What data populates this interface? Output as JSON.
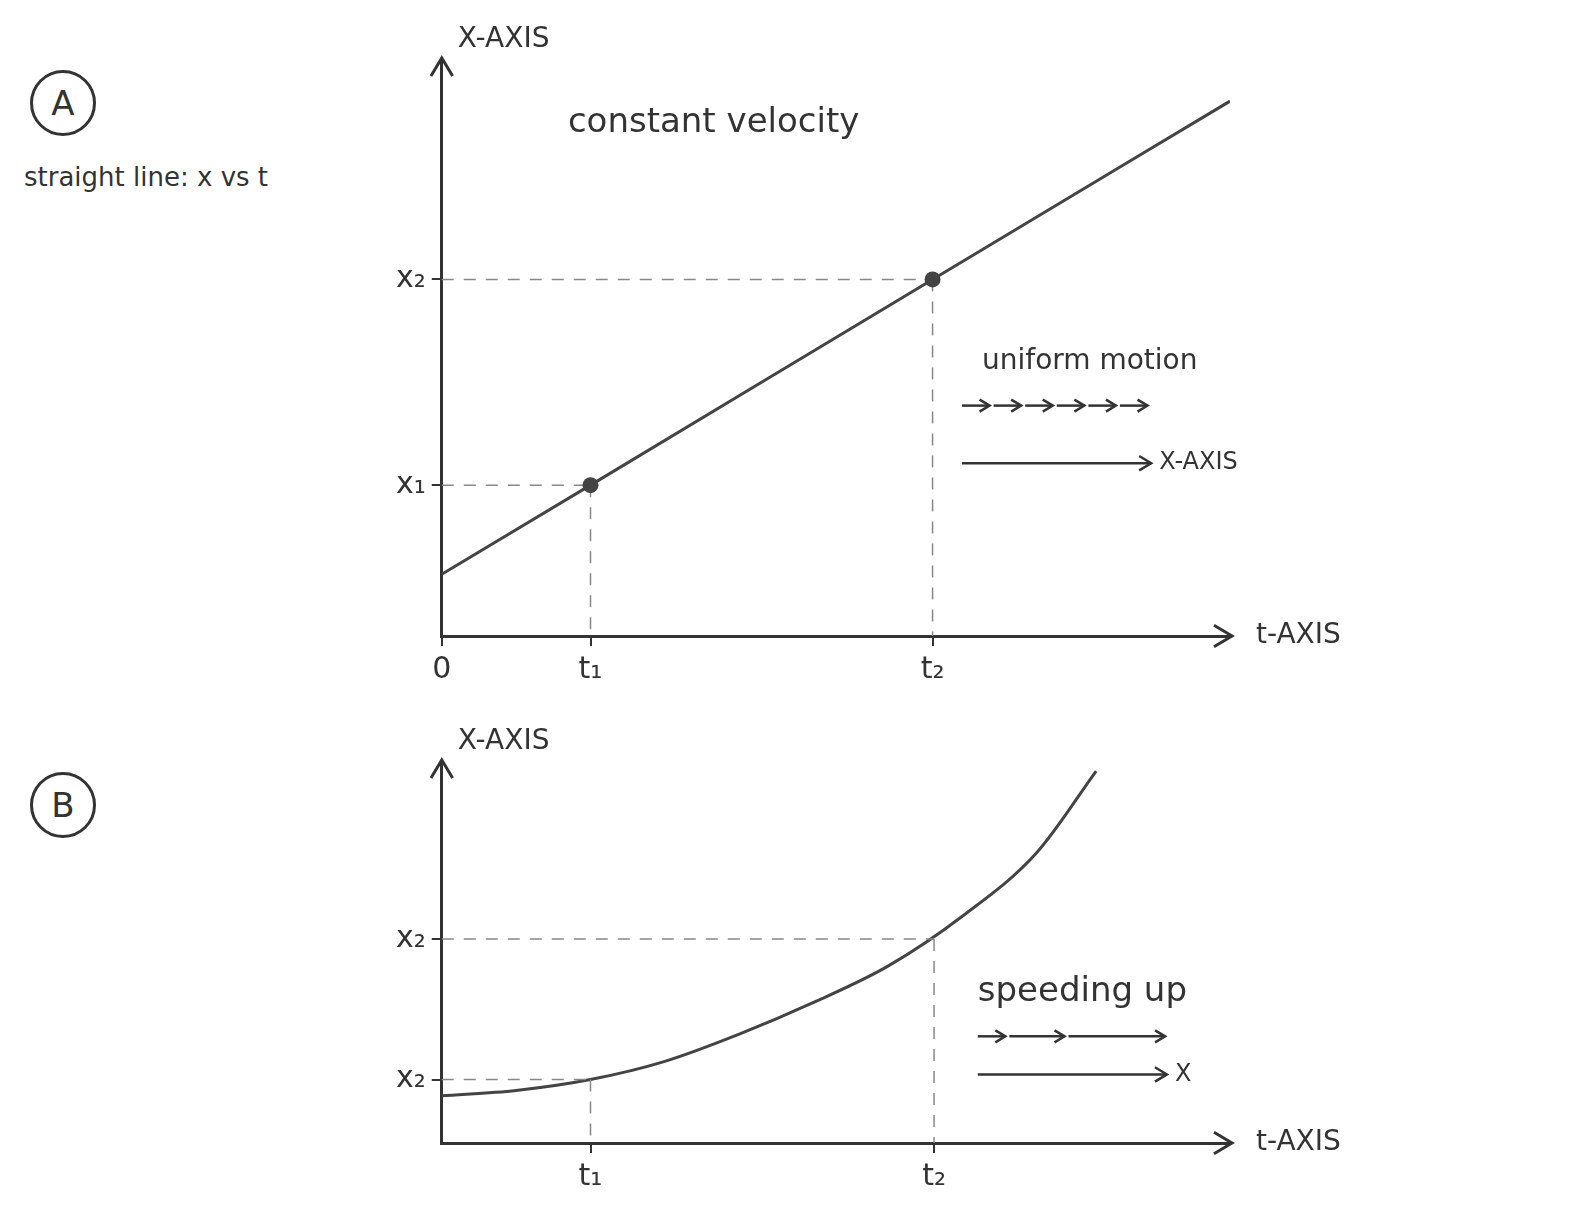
{
  "chart_data": [
    {
      "type": "line",
      "panel_label": "A",
      "side_note": "straight line: x vs t",
      "title": "constant velocity",
      "xlabel": "t-AXIS",
      "ylabel": "X-AXIS",
      "x": [
        0,
        1,
        3.3,
        5.3
      ],
      "values": [
        0.45,
        1.1,
        2.6,
        3.9
      ],
      "color": "#444444",
      "line_style": "solid",
      "marker": "circle",
      "guide_points": {
        "x": [
          1,
          3.3
        ],
        "values": [
          1.1,
          2.6
        ]
      },
      "xlim": [
        0,
        5.3
      ],
      "ylim": [
        0,
        4.2
      ],
      "xticks": [
        0,
        {
          "value": 1,
          "label": "t₁"
        },
        {
          "value": 3.3,
          "label": "t₂"
        }
      ],
      "yticks": [
        {
          "value": 1.1,
          "label": "x₁"
        },
        {
          "value": 2.6,
          "label": "x₂"
        }
      ],
      "grid": false,
      "motion_diagram": {
        "label": "uniform motion",
        "axis_label": "X-AXIS"
      }
    },
    {
      "type": "line",
      "panel_label": "B",
      "title": "speeding up",
      "xlabel": "t-AXIS",
      "ylabel": "X-AXIS",
      "x": [
        0,
        0.5,
        1,
        1.5,
        2,
        2.5,
        3,
        3.5,
        4,
        4.4
      ],
      "values": [
        0.52,
        0.58,
        0.7,
        0.9,
        1.2,
        1.55,
        1.95,
        2.5,
        3.2,
        4.1
      ],
      "color": "#444444",
      "line_style": "solid",
      "marker": "none",
      "guide_points": {
        "x": [
          1,
          3.31
        ],
        "values": [
          0.7,
          2.25
        ]
      },
      "xlim": [
        0,
        5.3
      ],
      "ylim": [
        0,
        4.2
      ],
      "xticks": [
        {
          "value": 1,
          "label": "t₁"
        },
        {
          "value": 3.31,
          "label": "t₂"
        }
      ],
      "yticks": [
        {
          "value": 0.7,
          "label": "x₂"
        },
        {
          "value": 2.25,
          "label": "x₂"
        }
      ],
      "grid": false,
      "motion_diagram": {
        "axis_label": "X"
      }
    }
  ]
}
